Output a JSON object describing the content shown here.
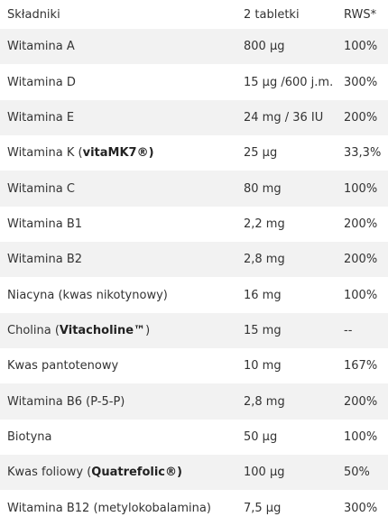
{
  "header": {
    "col_ingredient": "Składniki",
    "col_dose": "2 tabletki",
    "col_rws": "RWS*"
  },
  "rows": [
    {
      "name": "Witamina A",
      "dose": "800 µg",
      "rws": "100%"
    },
    {
      "name": "Witamina D",
      "dose": "15 µg /600 j.m.",
      "rws": "300%"
    },
    {
      "name": "Witamina E",
      "dose": "24 mg / 36 IU",
      "rws": "200%"
    },
    {
      "name_prefix": "Witamina K (",
      "brand": "vitaMK7®)",
      "name_suffix": "",
      "dose": "25 µg",
      "rws": "33,3%"
    },
    {
      "name": "Witamina C",
      "dose": "80 mg",
      "rws": "100%"
    },
    {
      "name": "Witamina B1",
      "dose": "2,2 mg",
      "rws": "200%"
    },
    {
      "name": "Witamina B2",
      "dose": "2,8 mg",
      "rws": "200%"
    },
    {
      "name": "Niacyna (kwas nikotynowy)",
      "dose": "16 mg",
      "rws": "100%"
    },
    {
      "name_prefix": "Cholina (",
      "brand": "Vitacholine™",
      "name_suffix": ")",
      "dose": "15 mg",
      "rws": "--"
    },
    {
      "name": "Kwas pantotenowy",
      "dose": "10 mg",
      "rws": "167%"
    },
    {
      "name": "Witamina B6 (P-5-P)",
      "dose": "2,8 mg",
      "rws": "200%"
    },
    {
      "name": "Biotyna",
      "dose": "50 µg",
      "rws": "100%"
    },
    {
      "name_prefix": "Kwas foliowy (",
      "brand": "Quatrefolic®)",
      "name_suffix": "",
      "dose": "100 µg",
      "rws": "50%"
    },
    {
      "name": "Witamina B12 (metylokobalamina)",
      "dose": "7,5 µg",
      "rws": "300%"
    }
  ],
  "colors": {
    "stripe": "#f2f2f2",
    "text": "#333333"
  }
}
